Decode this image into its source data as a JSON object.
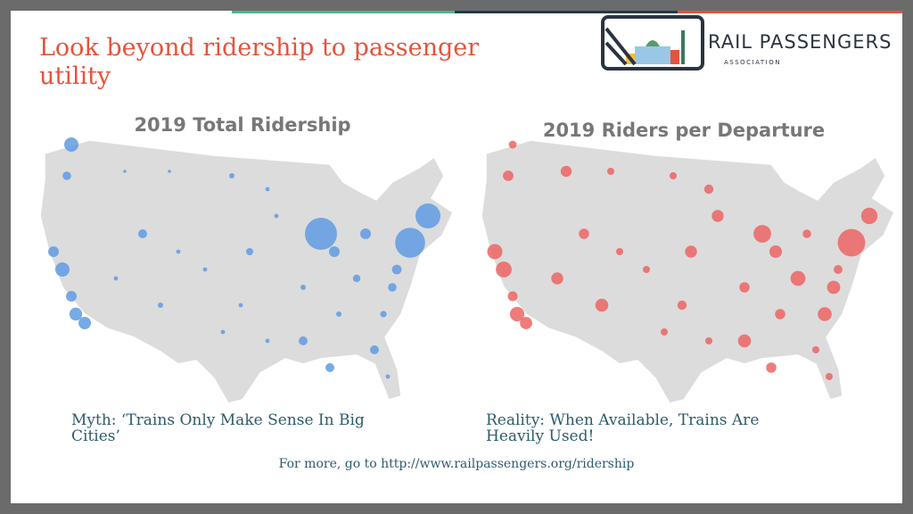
{
  "header": {
    "title": "Look beyond ridership to passenger utility"
  },
  "logo": {
    "name": "RAIL PASSENGERS",
    "subtitle": "ASSOCIATION"
  },
  "maps": [
    {
      "title": "2019 Total Ridership",
      "caption": "Myth: ‘Trains Only Make Sense In Big Cities’"
    },
    {
      "title": "2019 Riders per Departure",
      "caption": "Reality: When Available, Trains Are Heavily Used!"
    }
  ],
  "footer": "For more, go to http://www.railpassengers.org/ridership"
}
